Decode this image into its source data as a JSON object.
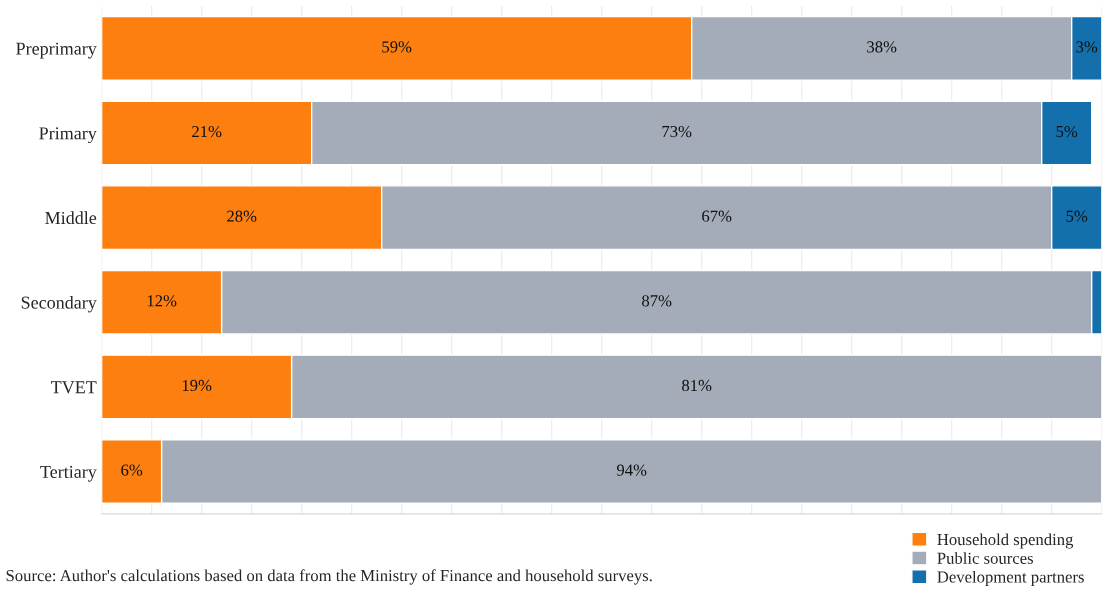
{
  "chart_data": {
    "type": "bar",
    "orientation": "horizontal",
    "stacked": true,
    "categories": [
      "Preprimary",
      "Primary",
      "Middle",
      "Secondary",
      "TVET",
      "Tertiary"
    ],
    "series": [
      {
        "name": "Household spending",
        "color": "#fd7f0f",
        "values": [
          59,
          21,
          28,
          12,
          19,
          6
        ],
        "value_labels": [
          "59%",
          "21%",
          "28%",
          "12%",
          "19%",
          "6%"
        ]
      },
      {
        "name": "Public sources",
        "color": "#a3acb8",
        "values": [
          38,
          73,
          67,
          87,
          81,
          94
        ],
        "value_labels": [
          "38%",
          "73%",
          "67%",
          "87%",
          "81%",
          "94%"
        ]
      },
      {
        "name": "Development partners",
        "color": "#1470ad",
        "values": [
          3,
          5,
          5,
          1,
          0.3,
          null
        ],
        "value_labels": [
          "3%",
          "5%",
          "5%",
          null,
          null,
          null
        ]
      }
    ],
    "xlim": [
      0,
      100
    ],
    "xticks": [
      {
        "value": 0,
        "label": null
      },
      {
        "value": 5,
        "label": null
      },
      {
        "value": 10,
        "label": null
      },
      {
        "value": 15,
        "label": null
      },
      {
        "value": 20,
        "label": null
      },
      {
        "value": 25,
        "label": null
      },
      {
        "value": 30,
        "label": null
      },
      {
        "value": 35,
        "label": null
      },
      {
        "value": 40,
        "label": null
      },
      {
        "value": 45,
        "label": null
      },
      {
        "value": 50,
        "label": null
      },
      {
        "value": 55,
        "label": null
      },
      {
        "value": 60,
        "label": null
      },
      {
        "value": 65,
        "label": null
      },
      {
        "value": 70,
        "label": null
      },
      {
        "value": 75,
        "label": null
      },
      {
        "value": 80,
        "label": null
      },
      {
        "value": 85,
        "label": null
      },
      {
        "value": 90,
        "label": null
      },
      {
        "value": 95,
        "label": null
      },
      {
        "value": 100,
        "label": null
      }
    ],
    "tick_labels": "y",
    "grid": "x",
    "legend": "bottom right",
    "annotations": [
      "Source: Author's calculations based on data from the Ministry of Finance and household surveys."
    ]
  }
}
